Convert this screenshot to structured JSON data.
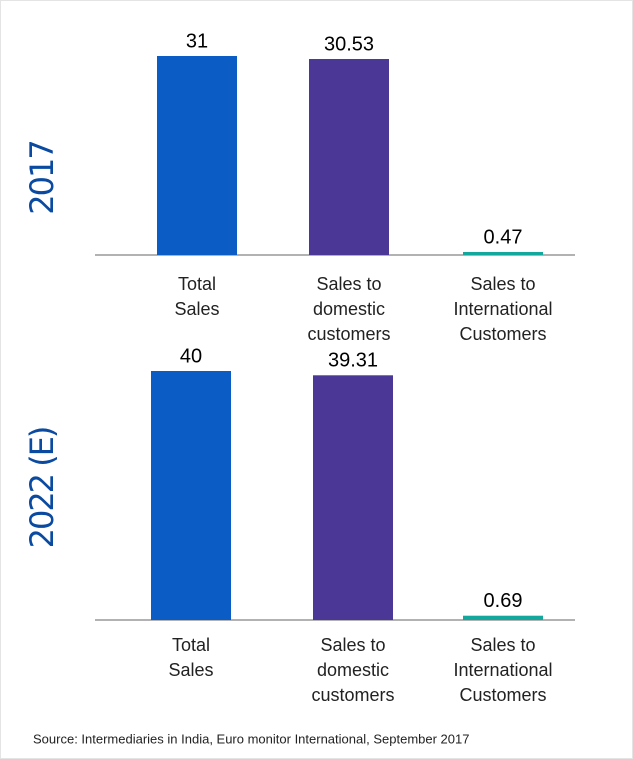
{
  "chart_data": [
    {
      "type": "bar",
      "title": "2017",
      "categories": [
        [
          "Total",
          "Sales"
        ],
        [
          "Sales to",
          "domestic",
          "customers"
        ],
        [
          "Sales to",
          "International",
          "Customers"
        ]
      ],
      "values": [
        31,
        30.53,
        0.47
      ],
      "colors": [
        "#0b5cc4",
        "#4a3796",
        "#13a89e"
      ]
    },
    {
      "type": "bar",
      "title": "2022 (E)",
      "categories": [
        [
          "Total",
          "Sales"
        ],
        [
          "Sales to",
          "domestic",
          "customers"
        ],
        [
          "Sales to",
          "International",
          "Customers"
        ]
      ],
      "values": [
        40,
        39.31,
        0.69
      ],
      "colors": [
        "#0b5cc4",
        "#4a3796",
        "#13a89e"
      ]
    }
  ],
  "source": "Source: Intermediaries in India, Euro monitor International, September 2017"
}
